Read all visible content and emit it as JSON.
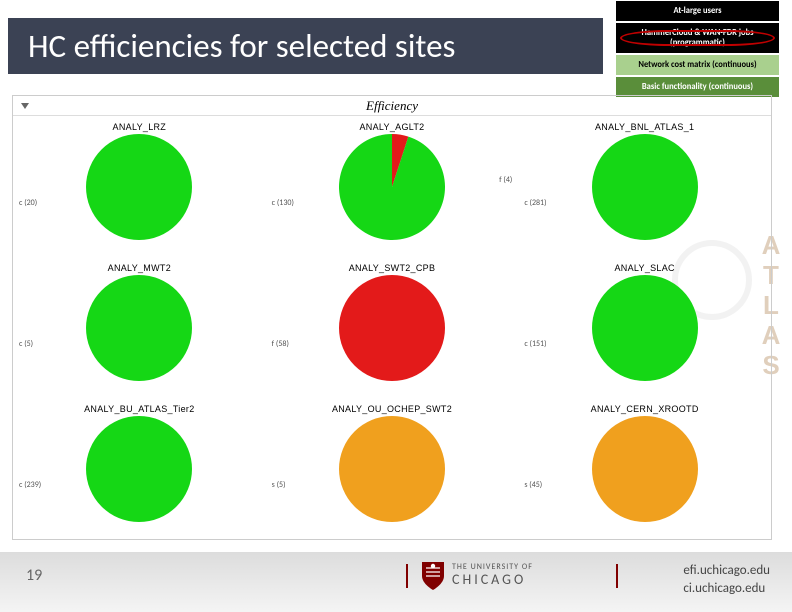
{
  "title": "HC efficiencies for selected sites",
  "status": [
    {
      "label": "At-large users",
      "cls": "status-black"
    },
    {
      "label": "HammerCloud & WAN-FDR jobs (programmatic)",
      "cls": "status-black status-highlight"
    },
    {
      "label": "Network cost matrix (continuous)",
      "cls": "status-green1"
    },
    {
      "label": "Basic functionality (continuous)",
      "cls": "status-green2"
    }
  ],
  "chart": {
    "title": "Efficiency",
    "colors": {
      "green": "#15d715",
      "red": "#e31a1a",
      "orange": "#f0a01e"
    },
    "cells": [
      {
        "name": "ANALY_LRZ",
        "left": "c (20)",
        "right": "",
        "slices": [
          {
            "c": "green",
            "v": 100
          }
        ]
      },
      {
        "name": "ANALY_AGLT2",
        "left": "c (130)",
        "right": "f (4)",
        "slices": [
          {
            "c": "red",
            "v": 5
          },
          {
            "c": "green",
            "v": 95
          }
        ]
      },
      {
        "name": "ANALY_BNL_ATLAS_1",
        "left": "c (281)",
        "right": "",
        "slices": [
          {
            "c": "green",
            "v": 100
          }
        ]
      },
      {
        "name": "ANALY_MWT2",
        "left": "c (5)",
        "right": "",
        "slices": [
          {
            "c": "green",
            "v": 100
          }
        ]
      },
      {
        "name": "ANALY_SWT2_CPB",
        "left": "f (58)",
        "right": "",
        "slices": [
          {
            "c": "red",
            "v": 100
          }
        ]
      },
      {
        "name": "ANALY_SLAC",
        "left": "c (151)",
        "right": "",
        "slices": [
          {
            "c": "green",
            "v": 100
          }
        ]
      },
      {
        "name": "ANALY_BU_ATLAS_Tier2",
        "left": "c (239)",
        "right": "",
        "slices": [
          {
            "c": "green",
            "v": 100
          }
        ]
      },
      {
        "name": "ANALY_OU_OCHEP_SWT2",
        "left": "s (5)",
        "right": "",
        "slices": [
          {
            "c": "orange",
            "v": 100
          }
        ]
      },
      {
        "name": "ANALY_CERN_XROOTD",
        "left": "s (45)",
        "right": "",
        "slices": [
          {
            "c": "orange",
            "v": 100
          }
        ]
      }
    ]
  },
  "footer": {
    "page": "19",
    "logo_top": "THE UNIVERSITY OF",
    "logo_bottom": "CHICAGO",
    "urls": [
      "efi.uchicago.edu",
      "ci.uchicago.edu"
    ]
  },
  "atlas": "ATLAS"
}
